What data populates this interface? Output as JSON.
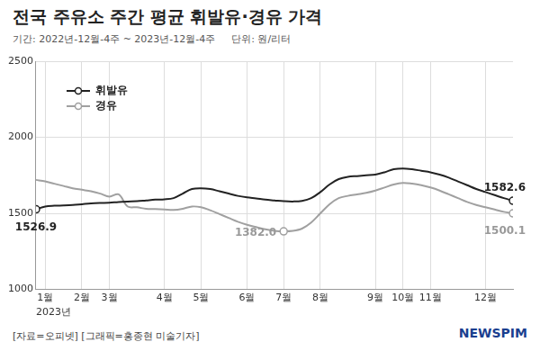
{
  "chart_data": {
    "type": "line",
    "title": "전국 주유소 주간 평균 휘발유·경유 가격",
    "subtitle": [
      "기간: 2022년-12월-4주 ~ 2023년-12월-4주",
      "단위: 원/리터"
    ],
    "x_label": "2023년",
    "source": "[자료=오피넷] [그래픽=홍종현 미술기자]",
    "credit": "NEWSPIM",
    "categories": [
      null,
      "1월",
      null,
      null,
      null,
      "2월",
      null,
      null,
      "3월",
      null,
      null,
      null,
      null,
      null,
      "4월",
      null,
      null,
      null,
      "5월",
      null,
      null,
      null,
      null,
      "6월",
      null,
      null,
      null,
      "7월",
      null,
      null,
      null,
      "8월",
      null,
      null,
      null,
      null,
      null,
      "9월",
      null,
      null,
      "10월",
      null,
      null,
      "11월",
      null,
      null,
      null,
      null,
      null,
      "12월",
      null,
      null,
      null
    ],
    "series": [
      {
        "name": "휘발유",
        "color": "#222222",
        "marker": "circle",
        "line_style": "solid",
        "values": [
          1526.9,
          1545,
          1550,
          1552,
          1555,
          1560,
          1565,
          1568,
          1570,
          1575,
          1578,
          1580,
          1585,
          1590,
          1592,
          1600,
          1630,
          1660,
          1665,
          1660,
          1645,
          1630,
          1615,
          1605,
          1598,
          1590,
          1585,
          1580,
          1578,
          1582,
          1600,
          1640,
          1690,
          1725,
          1740,
          1745,
          1750,
          1755,
          1770,
          1790,
          1795,
          1790,
          1780,
          1770,
          1755,
          1735,
          1710,
          1685,
          1660,
          1640,
          1620,
          1600,
          1582.6
        ],
        "value_labels": [
          "1526.9",
          null,
          null,
          null,
          null,
          null,
          null,
          null,
          null,
          null,
          null,
          null,
          null,
          null,
          null,
          null,
          null,
          null,
          null,
          null,
          null,
          null,
          null,
          null,
          null,
          null,
          null,
          null,
          null,
          null,
          null,
          null,
          null,
          null,
          null,
          null,
          null,
          null,
          null,
          null,
          null,
          null,
          null,
          null,
          null,
          null,
          null,
          null,
          null,
          null,
          null,
          null,
          "1582.6"
        ]
      },
      {
        "name": "경유",
        "color": "#a0a0a0",
        "marker": "circle",
        "line_style": "solid",
        "values": [
          1720,
          1710,
          1695,
          1680,
          1665,
          1655,
          1645,
          1630,
          1610,
          1625,
          1545,
          1540,
          1530,
          1528,
          1525,
          1522,
          1530,
          1545,
          1540,
          1520,
          1495,
          1470,
          1445,
          1425,
          1410,
          1395,
          1385,
          1382.0,
          1385,
          1400,
          1440,
          1500,
          1560,
          1600,
          1615,
          1625,
          1635,
          1650,
          1670,
          1690,
          1700,
          1695,
          1685,
          1670,
          1650,
          1625,
          1600,
          1575,
          1555,
          1540,
          1525,
          1510,
          1500.1
        ],
        "value_labels": [
          null,
          null,
          null,
          null,
          null,
          null,
          null,
          null,
          null,
          null,
          null,
          null,
          null,
          null,
          null,
          null,
          null,
          null,
          null,
          null,
          null,
          null,
          null,
          null,
          null,
          null,
          null,
          "1382.0",
          null,
          null,
          null,
          null,
          null,
          null,
          null,
          null,
          null,
          null,
          null,
          null,
          null,
          null,
          null,
          null,
          null,
          null,
          null,
          null,
          null,
          null,
          null,
          null,
          "1500.1"
        ]
      }
    ],
    "ylim": [
      1000,
      2500
    ],
    "yticks": [
      1000,
      1500,
      2000,
      2500
    ],
    "grid": true,
    "legend": "top-left"
  }
}
